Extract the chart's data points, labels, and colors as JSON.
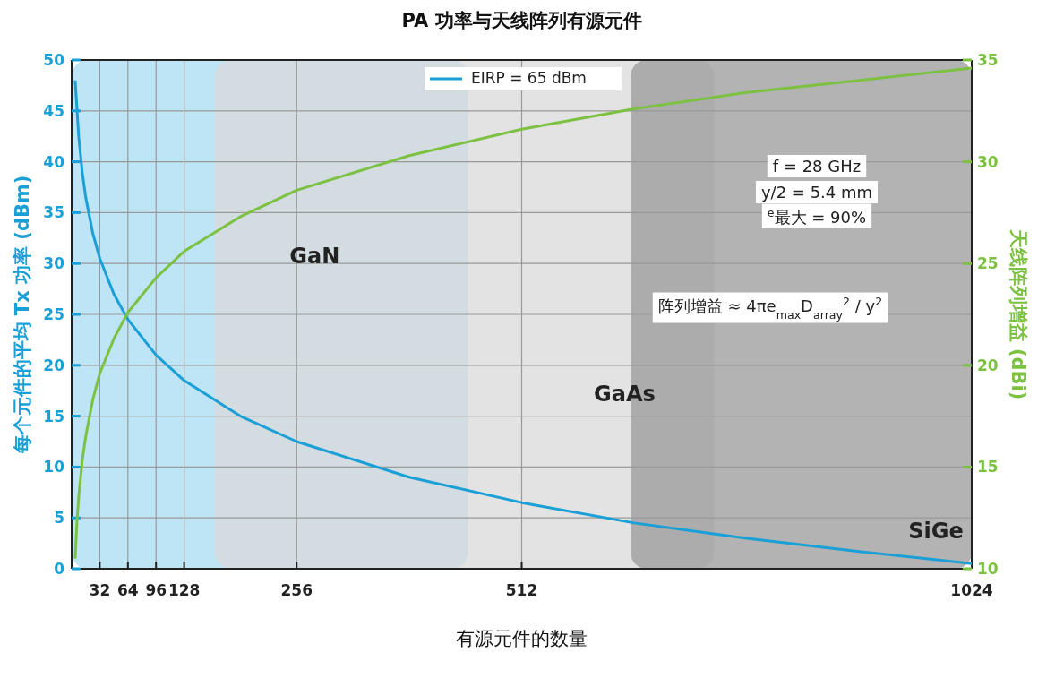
{
  "chart_data": {
    "type": "line",
    "title": "PA 功率与天线阵列有源元件",
    "xlabel": "有源元件的数量",
    "ylabel": "每个元件的平均 Tx 功率 (dBm)",
    "y2label": "天线阵列增益 (dBi)",
    "xlim": [
      0,
      1024
    ],
    "xticks": [
      32,
      64,
      96,
      128,
      256,
      512,
      1024
    ],
    "ylim": [
      0,
      50
    ],
    "yticks": [
      0,
      5,
      10,
      15,
      20,
      25,
      30,
      35,
      40,
      45,
      50
    ],
    "y2lim": [
      10,
      35
    ],
    "y2ticks": [
      10,
      15,
      20,
      25,
      30,
      35
    ],
    "grid": true,
    "legend": "top",
    "series": [
      {
        "name": "EIRP = 65 dBm",
        "color": "#1a9fd6",
        "x": [
          4,
          8,
          12,
          16,
          24,
          32,
          48,
          64,
          96,
          128,
          192,
          256,
          384,
          512,
          640,
          768,
          896,
          1024
        ],
        "values": [
          48,
          42.5,
          39,
          36.5,
          33,
          30.5,
          27,
          24.5,
          21,
          18.5,
          15,
          12.5,
          9,
          6.5,
          4.5,
          3,
          1.7,
          0.5
        ]
      },
      {
        "color": "#7cc142",
        "axis": "y2",
        "x": [
          4,
          6,
          8,
          12,
          16,
          24,
          32,
          48,
          64,
          96,
          128,
          192,
          256,
          384,
          512,
          640,
          768,
          896,
          1024
        ],
        "values": [
          10.5,
          12.3,
          13.5,
          15.3,
          16.5,
          18.3,
          19.6,
          21.3,
          22.6,
          24.3,
          25.6,
          27.3,
          28.6,
          30.3,
          31.6,
          32.6,
          33.4,
          34,
          34.6
        ]
      }
    ],
    "bands": [
      {
        "axis": "x",
        "from": 0,
        "to": 451,
        "label": "GaN",
        "color": "#a8dcf2"
      },
      {
        "axis": "x",
        "from": 163,
        "to": 731,
        "label": "GaAs",
        "color": "#d9d9d9"
      },
      {
        "axis": "x",
        "from": 636,
        "to": 1024,
        "label": "SiGe",
        "color": "#9a9a9a"
      }
    ],
    "annotations": [
      "f = 28 GHz",
      "y/2 = 5.4 mm",
      "$^{e}$最大 = 90%",
      "阵列增益 ≈ 4πe$_{max}$D$_{array}$$^{2}$ / y$^{2}$"
    ]
  }
}
